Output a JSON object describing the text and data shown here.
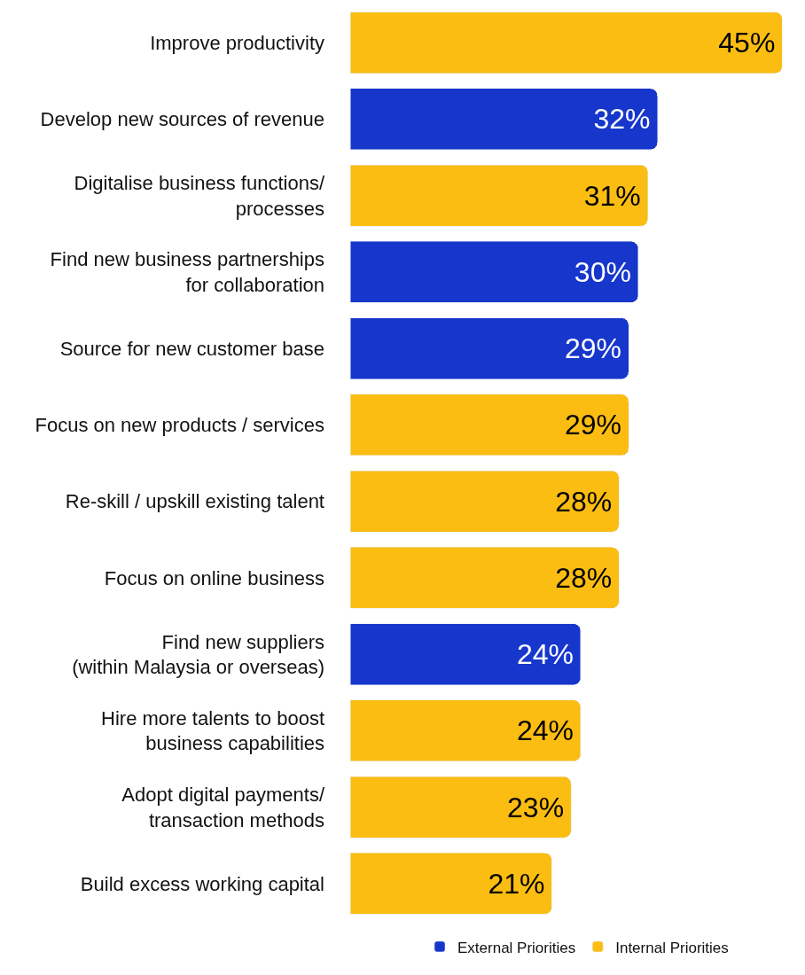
{
  "chart_data": {
    "type": "bar",
    "orientation": "horizontal",
    "stacked": true,
    "legend": "bottom",
    "categories": [
      "Improve productivity",
      "Develop new sources of revenue",
      "Digitalise business functions/\nprocesses",
      "Find new business partnerships\nfor collaboration",
      "Source for new customer base",
      "Focus on new products / services",
      "Re-skill / upskill existing talent",
      "Focus on online business",
      "Find new suppliers\n(within Malaysia or overseas)",
      "Hire more talents to boost\nbusiness capabilities",
      "Adopt digital payments/\ntransaction methods",
      "Build excess working capital"
    ],
    "series": [
      {
        "name": "External Priorities",
        "color": "#1736cc",
        "values": [
          null,
          32,
          null,
          30,
          29,
          null,
          null,
          null,
          24,
          null,
          null,
          null
        ],
        "value_labels": [
          null,
          "32%",
          null,
          "30%",
          "29%",
          null,
          null,
          null,
          "24%",
          null,
          null,
          null
        ]
      },
      {
        "name": "Internal Priorities",
        "color": "#fbbd12",
        "values": [
          45,
          null,
          31,
          null,
          null,
          29,
          28,
          28,
          null,
          24,
          23,
          21
        ],
        "value_labels": [
          "45%",
          null,
          "31%",
          null,
          null,
          "29%",
          "28%",
          "28%",
          null,
          "24%",
          "23%",
          "21%"
        ]
      }
    ]
  }
}
